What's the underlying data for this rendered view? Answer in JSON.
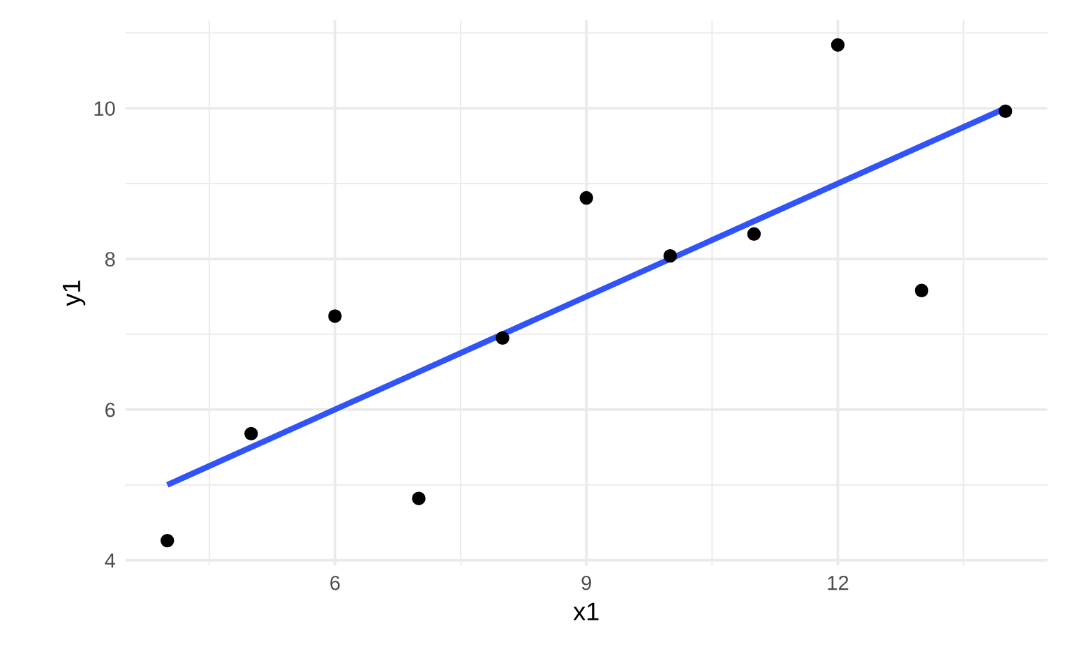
{
  "chart_data": {
    "type": "scatter",
    "xlabel": "x1",
    "ylabel": "y1",
    "series": [
      {
        "color": "#000000",
        "marker": "circle",
        "x": [
          10,
          8,
          13,
          9,
          11,
          14,
          6,
          4,
          12,
          7,
          5
        ],
        "values": [
          8.04,
          6.95,
          7.58,
          8.81,
          8.33,
          9.96,
          7.24,
          4.26,
          10.84,
          4.82,
          5.68
        ]
      },
      {
        "type": "line",
        "color": "#3153fa",
        "line_style": "solid",
        "x": [
          4,
          14
        ],
        "values": [
          5,
          10
        ]
      }
    ],
    "xlim": [
      3.5,
      14.5
    ],
    "ylim": [
      3.93,
      11.17
    ],
    "xticks": [
      6,
      9,
      12
    ],
    "yticks": [
      4,
      6,
      8,
      10
    ],
    "grid": true,
    "legend": false
  }
}
